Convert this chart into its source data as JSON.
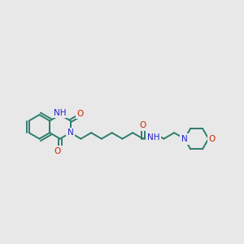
{
  "bg_color": "#e8e8e8",
  "bond_color": "#2d7d6e",
  "N_color": "#2222cc",
  "O_color": "#cc2200",
  "line_width": 1.4,
  "font_size": 7.5,
  "fig_size": [
    3.0,
    3.0
  ],
  "dpi": 100,
  "xlim": [
    0,
    10.0
  ],
  "ylim": [
    2.5,
    8.5
  ]
}
